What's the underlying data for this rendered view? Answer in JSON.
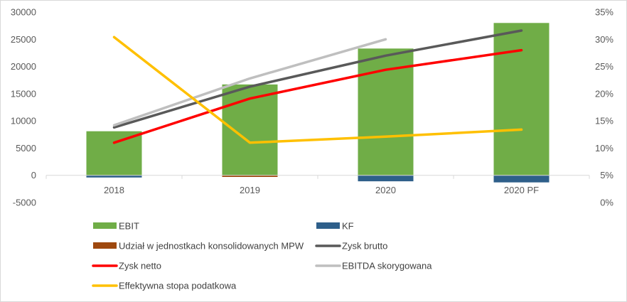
{
  "chart_data": {
    "type": "bar",
    "categories": [
      "2018",
      "2019",
      "2020",
      "2020 PF"
    ],
    "y_left": {
      "min": -5000,
      "max": 30000,
      "step": 5000,
      "tick_labels": [
        "-5000",
        "0",
        "5000",
        "10000",
        "15000",
        "20000",
        "25000",
        "30000"
      ]
    },
    "y_right": {
      "min": 0,
      "max": 35,
      "step": 5,
      "tick_labels": [
        "0%",
        "5%",
        "10%",
        "15%",
        "20%",
        "25%",
        "30%",
        "35%"
      ]
    },
    "grid": false,
    "legend_position": "bottom",
    "bars": [
      {
        "name": "EBIT",
        "color": "#70ad47",
        "axis": "left",
        "values": [
          8100,
          16700,
          23300,
          28000
        ]
      },
      {
        "name": "KF",
        "color": "#2e5f8a",
        "axis": "left",
        "values": [
          -400,
          -200,
          -1100,
          -1300
        ]
      },
      {
        "name": "Udział w jednostkach konsolidowanych MPW",
        "color": "#9e480e",
        "axis": "left",
        "values": [
          0,
          -300,
          0,
          0
        ]
      }
    ],
    "lines": [
      {
        "name": "Zysk brutto",
        "color": "#595959",
        "axis": "left",
        "values": [
          8800,
          16300,
          22000,
          26600
        ]
      },
      {
        "name": "Zysk netto",
        "color": "#ff0000",
        "axis": "left",
        "values": [
          6000,
          14100,
          19400,
          23000
        ]
      },
      {
        "name": "EBITDA skorygowana",
        "color": "#bfbfbf",
        "axis": "left",
        "values": [
          9200,
          17800,
          25000,
          null
        ]
      },
      {
        "name": "Effektywna stopa podatkowa",
        "color": "#ffc000",
        "axis": "right",
        "values": [
          30.4,
          11.0,
          12.1,
          13.4
        ]
      }
    ]
  }
}
